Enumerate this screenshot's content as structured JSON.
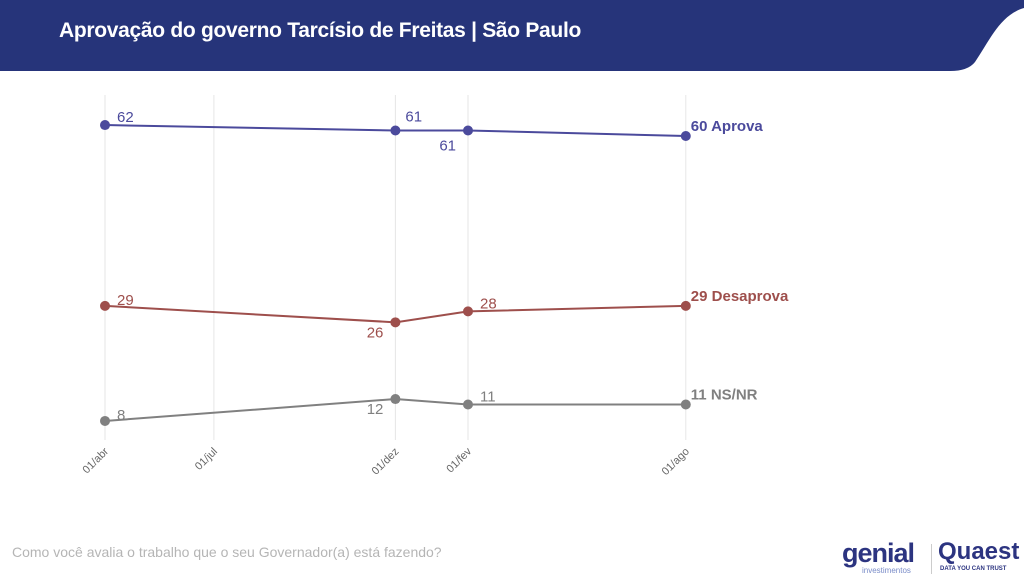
{
  "header": {
    "title": "Aprovação do governo Tarcísio de Freitas | São Paulo"
  },
  "footer": {
    "question": "Como você avalia o trabalho que o seu Governador(a) está fazendo?",
    "logo_genial": "genial",
    "logo_genial_sub": "investimentos",
    "logo_quaest": "Quaest",
    "logo_quaest_sub": "DATA YOU CAN TRUST"
  },
  "watermark": {
    "main": "genial",
    "sub": "investimentos"
  },
  "colors": {
    "header": "#26347a",
    "aprova": "#4b4a9c",
    "desaprova": "#9e4f4c",
    "nsnr": "#808080"
  },
  "chart_data": {
    "type": "line",
    "title": "Aprovação do governo Tarcísio de Freitas | São Paulo",
    "x_ticks": [
      {
        "label": "01/abr",
        "month": 0
      },
      {
        "label": "01/jul",
        "month": 3
      },
      {
        "label": "01/dez",
        "month": 8
      },
      {
        "label": "01/fev",
        "month": 10
      },
      {
        "label": "01/ago",
        "month": 16
      }
    ],
    "x_points_month": [
      0,
      8,
      10,
      16
    ],
    "ylim": [
      0,
      65
    ],
    "grid": "vertical",
    "series": [
      {
        "name": "Aprova",
        "end_label": "60 Aprova",
        "values": [
          62,
          61,
          61,
          60
        ],
        "color": "#4b4a9c"
      },
      {
        "name": "Desaprova",
        "end_label": "29 Desaprova",
        "values": [
          29,
          26,
          28,
          29
        ],
        "color": "#9e4f4c"
      },
      {
        "name": "NS/NR",
        "end_label": "11 NS/NR",
        "values": [
          8,
          12,
          11,
          11
        ],
        "color": "#808080"
      }
    ]
  }
}
